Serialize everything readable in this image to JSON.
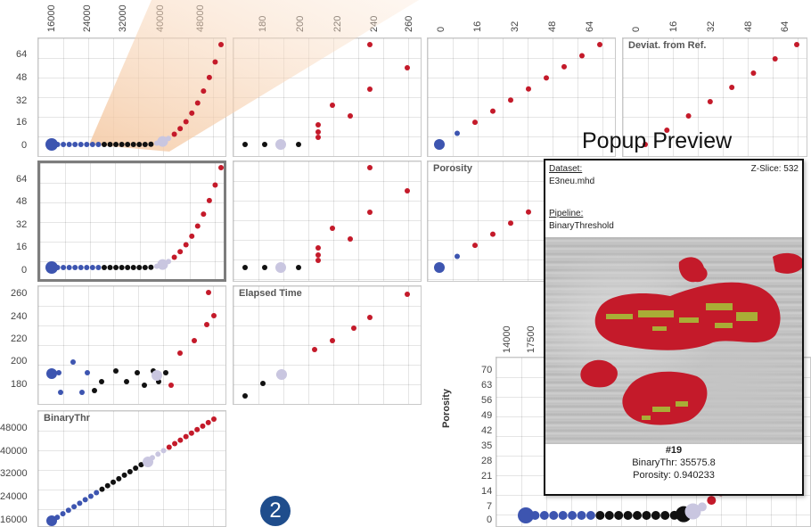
{
  "cells": [
    {
      "title": ""
    },
    {
      "title": ""
    },
    {
      "title": ""
    },
    {
      "title": "Deviat. from Ref."
    },
    {
      "title": ""
    },
    {
      "title": ""
    },
    {
      "title": "Porosity"
    },
    {
      "title": ""
    },
    {
      "title": "Elapsed Time"
    },
    {
      "title": "BinaryThr"
    }
  ],
  "top_axes": {
    "binarythr": [
      "16000",
      "24000",
      "32000",
      "40000",
      "48000"
    ],
    "elapsed": [
      "180",
      "200",
      "220",
      "240",
      "260"
    ],
    "porosity_a": [
      "0",
      "16",
      "32",
      "48",
      "64"
    ],
    "porosity_b": [
      "0",
      "16",
      "32",
      "48",
      "64"
    ]
  },
  "left_axes": {
    "row1": [
      "64",
      "48",
      "32",
      "16",
      "0"
    ],
    "row2": [
      "64",
      "48",
      "32",
      "16",
      "0"
    ],
    "row3": [
      "260",
      "240",
      "220",
      "200",
      "180"
    ],
    "row4": [
      "48000",
      "40000",
      "32000",
      "24000",
      "16000"
    ]
  },
  "zoom_view": {
    "y_label": "Porosity",
    "y_ticks": [
      "70",
      "63",
      "56",
      "49",
      "42",
      "35",
      "28",
      "21",
      "14",
      "7",
      "0"
    ],
    "x_ticks": [
      "14000",
      "17500"
    ]
  },
  "popup": {
    "heading": "Popup Preview",
    "dataset_label": "Dataset:",
    "dataset_value": "E3neu.mhd",
    "pipeline_label": "Pipeline:",
    "pipeline_value": "BinaryThreshold",
    "zslice": "Z-Slice: 532",
    "id": "#19",
    "binarythr": "BinaryThr: 35575.8",
    "porosity": "Porosity: 0.940233"
  },
  "badge": "2",
  "colors": {
    "low": "#3d55b0",
    "mid": "#111111",
    "high": "#c41a2a",
    "selected": "#c9c6e0"
  }
}
